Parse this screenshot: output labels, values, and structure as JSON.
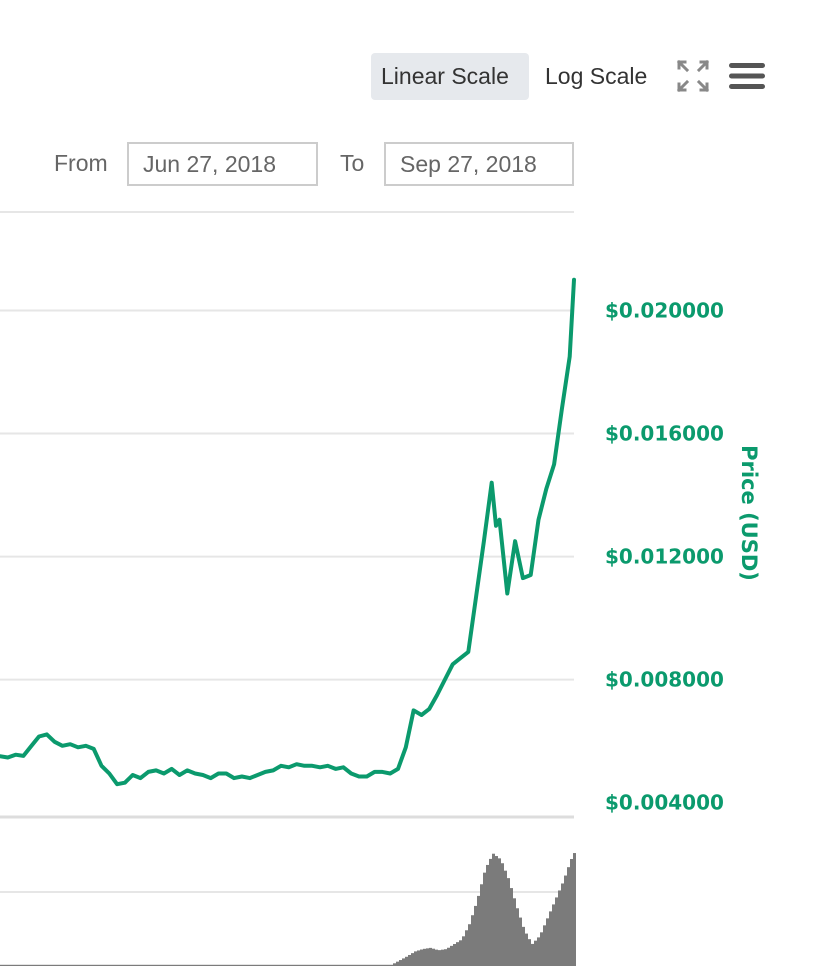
{
  "toolbar": {
    "linear_label": "Linear Scale",
    "log_label": "Log Scale",
    "active_scale": "linear",
    "fullscreen_icon": "fullscreen-icon",
    "menu_icon": "hamburger-menu-icon"
  },
  "range": {
    "from_label": "From",
    "from_value": "Jun 27, 2018",
    "to_label": "To",
    "to_value": "Sep 27, 2018"
  },
  "colors": {
    "price_line": "#0b9a6d",
    "volume_bars": "#7b7b7b",
    "grid": "#e6e6e6",
    "active_button": "#e6e9ed"
  },
  "chart_data": {
    "type": "line",
    "y_axis": {
      "title": "Price (USD)",
      "position": "right",
      "ticks": [
        0.004,
        0.008,
        0.012,
        0.016,
        0.02
      ],
      "tick_labels": [
        "$0.004000",
        "$0.008000",
        "$0.012000",
        "$0.016000",
        "$0.020000"
      ],
      "range": [
        0.0036,
        0.0232
      ]
    },
    "x_range": [
      "Jun 27, 2018",
      "Sep 27, 2018"
    ],
    "grid": true,
    "series": [
      {
        "values": [
          [
            0.0,
            0.00551
          ],
          [
            1.1,
            0.00547
          ],
          [
            2.2,
            0.00556
          ],
          [
            3.3,
            0.00552
          ],
          [
            4.4,
            0.00584
          ],
          [
            5.5,
            0.00615
          ],
          [
            6.6,
            0.00622
          ],
          [
            7.7,
            0.00598
          ],
          [
            8.8,
            0.00585
          ],
          [
            9.9,
            0.0059
          ],
          [
            11.0,
            0.0058
          ],
          [
            12.1,
            0.00585
          ],
          [
            13.2,
            0.00575
          ],
          [
            14.3,
            0.0052
          ],
          [
            15.4,
            0.00495
          ],
          [
            16.5,
            0.0046
          ],
          [
            17.6,
            0.00465
          ],
          [
            18.7,
            0.0049
          ],
          [
            19.8,
            0.0048
          ],
          [
            20.9,
            0.005
          ],
          [
            22.0,
            0.00505
          ],
          [
            23.1,
            0.00495
          ],
          [
            24.2,
            0.0051
          ],
          [
            25.3,
            0.0049
          ],
          [
            26.4,
            0.00505
          ],
          [
            27.5,
            0.00495
          ],
          [
            28.6,
            0.0049
          ],
          [
            29.7,
            0.0048
          ],
          [
            30.8,
            0.00495
          ],
          [
            31.9,
            0.00495
          ],
          [
            33.0,
            0.0048
          ],
          [
            34.1,
            0.00485
          ],
          [
            35.2,
            0.0048
          ],
          [
            36.3,
            0.0049
          ],
          [
            37.4,
            0.005
          ],
          [
            38.5,
            0.00505
          ],
          [
            39.6,
            0.0052
          ],
          [
            40.7,
            0.00515
          ],
          [
            41.8,
            0.00525
          ],
          [
            42.9,
            0.0052
          ],
          [
            44.0,
            0.0052
          ],
          [
            45.1,
            0.00515
          ],
          [
            46.2,
            0.0052
          ],
          [
            47.3,
            0.0051
          ],
          [
            48.4,
            0.00515
          ],
          [
            49.5,
            0.00495
          ],
          [
            50.6,
            0.00485
          ],
          [
            51.7,
            0.00485
          ],
          [
            52.8,
            0.005
          ],
          [
            53.9,
            0.005
          ],
          [
            55.0,
            0.00495
          ],
          [
            56.1,
            0.0051
          ],
          [
            57.2,
            0.0058
          ],
          [
            58.3,
            0.007
          ],
          [
            59.4,
            0.00685
          ],
          [
            60.5,
            0.00705
          ],
          [
            61.6,
            0.0075
          ],
          [
            62.7,
            0.008
          ],
          [
            63.8,
            0.0085
          ],
          [
            64.9,
            0.0087
          ],
          [
            66.0,
            0.0089
          ],
          [
            67.1,
            0.0107
          ],
          [
            68.2,
            0.0125
          ],
          [
            69.3,
            0.0144
          ],
          [
            69.9,
            0.013
          ],
          [
            70.4,
            0.0132
          ],
          [
            71.5,
            0.0108
          ],
          [
            72.6,
            0.0125
          ],
          [
            73.7,
            0.0113
          ],
          [
            74.8,
            0.0114
          ],
          [
            75.9,
            0.0132
          ],
          [
            77.0,
            0.0142
          ],
          [
            78.1,
            0.015
          ],
          [
            79.2,
            0.0168
          ],
          [
            80.3,
            0.0185
          ],
          [
            80.9,
            0.021
          ]
        ]
      }
    ],
    "volume": {
      "values": [
        [
          0.0,
          0.01
        ],
        [
          11.0,
          0.01
        ],
        [
          22.0,
          0.01
        ],
        [
          33.0,
          0.01
        ],
        [
          44.0,
          0.01
        ],
        [
          55.0,
          0.01
        ],
        [
          57.2,
          0.08
        ],
        [
          58.3,
          0.12
        ],
        [
          59.4,
          0.14
        ],
        [
          60.5,
          0.15
        ],
        [
          61.6,
          0.13
        ],
        [
          62.7,
          0.14
        ],
        [
          63.8,
          0.18
        ],
        [
          64.9,
          0.22
        ],
        [
          66.0,
          0.35
        ],
        [
          67.1,
          0.55
        ],
        [
          68.2,
          0.8
        ],
        [
          69.3,
          0.93
        ],
        [
          70.4,
          0.88
        ],
        [
          71.5,
          0.72
        ],
        [
          72.6,
          0.5
        ],
        [
          73.7,
          0.3
        ],
        [
          74.8,
          0.18
        ],
        [
          75.9,
          0.25
        ],
        [
          77.0,
          0.4
        ],
        [
          78.1,
          0.55
        ],
        [
          79.2,
          0.7
        ],
        [
          80.3,
          0.88
        ],
        [
          80.9,
          0.95
        ]
      ]
    }
  }
}
